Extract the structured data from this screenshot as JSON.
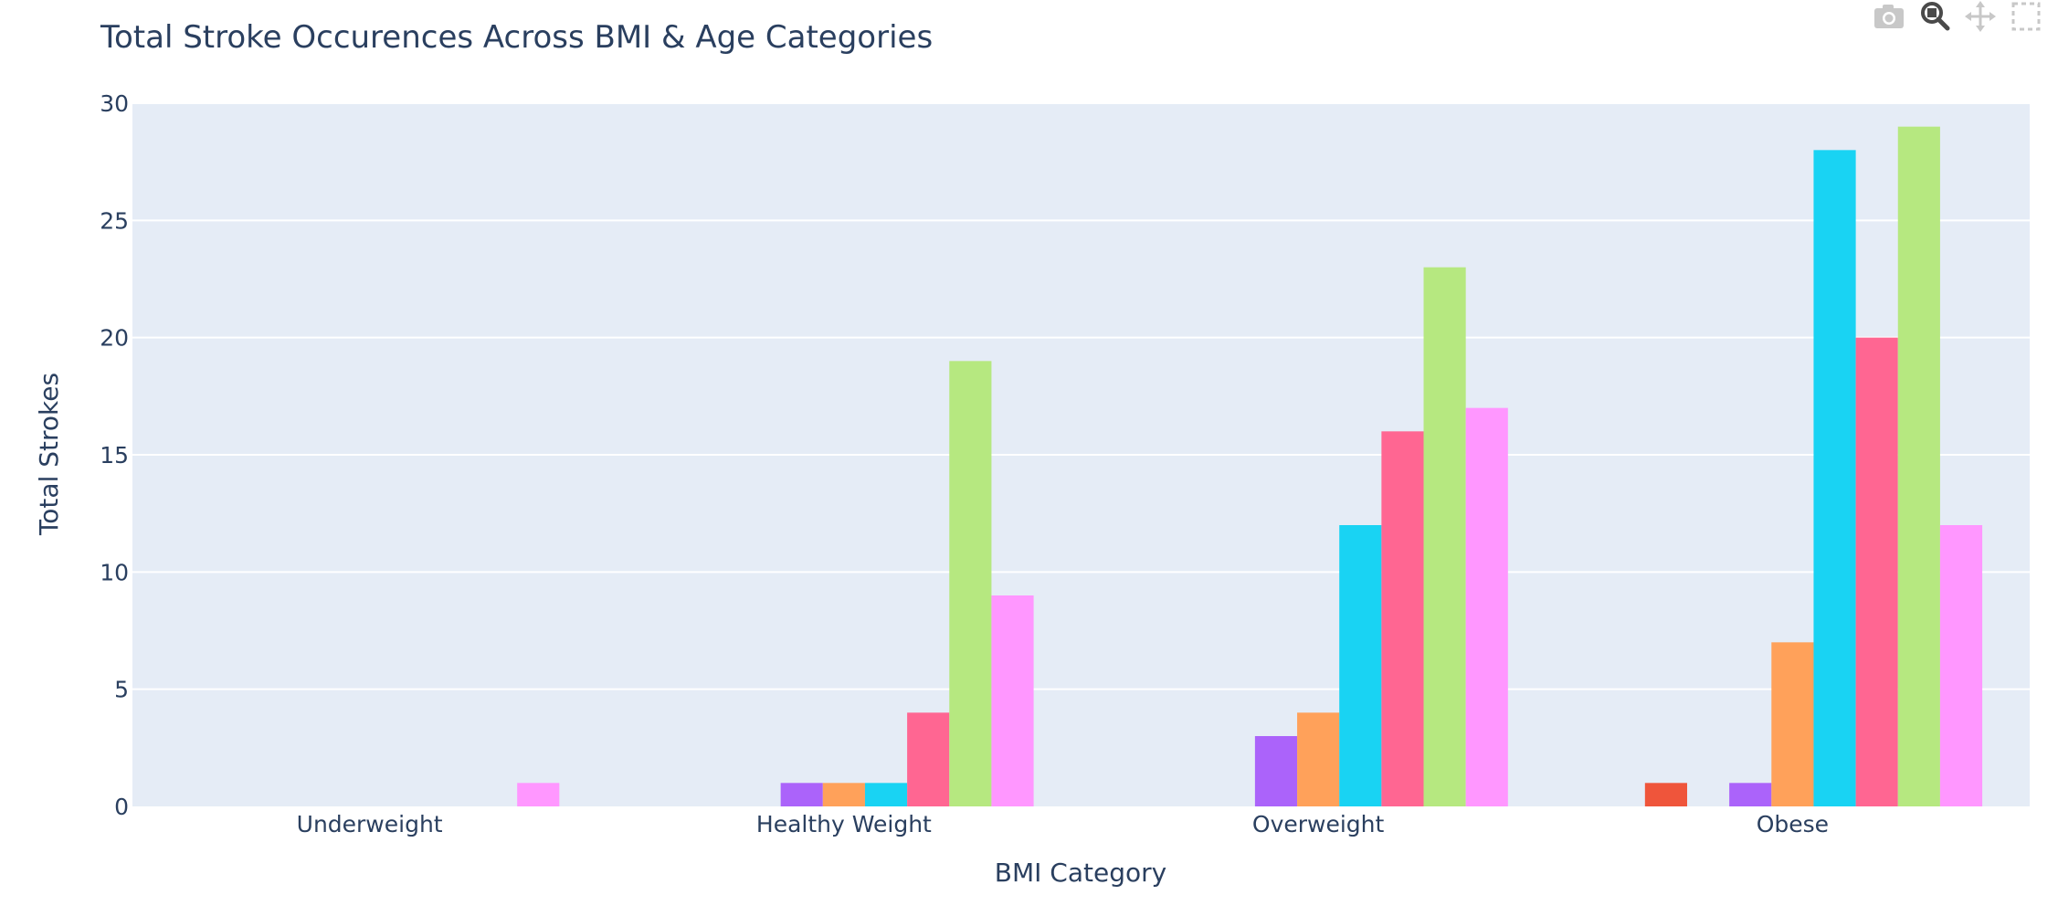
{
  "chart_data": {
    "type": "bar",
    "title": "Total Stroke Occurences Across BMI & Age Categories",
    "xlabel": "BMI Category",
    "ylabel": "Total Strokes",
    "categories": [
      "Underweight",
      "Healthy Weight",
      "Overweight",
      "Obese"
    ],
    "ylim": [
      0,
      30
    ],
    "yticks": [
      "0",
      "5",
      "10",
      "15",
      "20",
      "25",
      "30"
    ],
    "grid": true,
    "legend": "none",
    "series": [
      {
        "color": "#636efa",
        "values": [
          0,
          0,
          0,
          0
        ]
      },
      {
        "color": "#EF553B",
        "values": [
          0,
          0,
          0,
          1
        ]
      },
      {
        "color": "#00cc96",
        "values": [
          0,
          0,
          0,
          0
        ]
      },
      {
        "color": "#ab63fa",
        "values": [
          0,
          1,
          3,
          1
        ]
      },
      {
        "color": "#FFA15A",
        "values": [
          0,
          1,
          4,
          7
        ]
      },
      {
        "color": "#19d3f3",
        "values": [
          0,
          1,
          12,
          28
        ]
      },
      {
        "color": "#FF6692",
        "values": [
          0,
          4,
          16,
          20
        ]
      },
      {
        "color": "#B6E880",
        "values": [
          0,
          19,
          23,
          29
        ]
      },
      {
        "color": "#FF97FF",
        "values": [
          1,
          9,
          17,
          12
        ]
      }
    ]
  },
  "modebar": {
    "icons": [
      "camera-icon",
      "zoom-icon",
      "pan-icon",
      "box-select-icon"
    ]
  }
}
